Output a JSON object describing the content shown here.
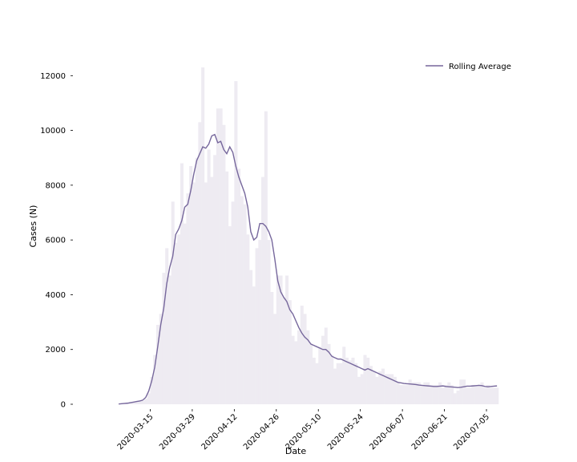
{
  "chart_data": {
    "type": "bar",
    "title": "",
    "xlabel": "Date",
    "ylabel": "Cases (N)",
    "start_date": "2020-03-01",
    "ylim": [
      0,
      12800
    ],
    "y_ticks": [
      0,
      2000,
      4000,
      6000,
      8000,
      10000,
      12000
    ],
    "y_tick_labels": [
      "0",
      "2000",
      "4000",
      "6000",
      "8000",
      "10000",
      "12000"
    ],
    "x_tick_labels": [
      "2020-03-15",
      "2020-03-29",
      "2020-04-12",
      "2020-04-26",
      "2020-05-10",
      "2020-05-24",
      "2020-06-07",
      "2020-06-21",
      "2020-07-05"
    ],
    "legend": {
      "position": "top-right",
      "entries": [
        {
          "label": "Rolling Average",
          "color": "#76679c"
        }
      ]
    },
    "colors": {
      "bars": "#eeebf2",
      "line": "#76679c"
    },
    "series": [
      {
        "type": "bar",
        "name": "",
        "values": [
          0,
          0,
          0,
          10,
          20,
          30,
          60,
          80,
          90,
          100,
          110,
          120,
          200,
          400,
          1000,
          1800,
          2900,
          3300,
          4800,
          5700,
          4700,
          7400,
          5900,
          6200,
          8800,
          6600,
          7700,
          8700,
          8100,
          9000,
          10300,
          12300,
          8100,
          9300,
          8300,
          9100,
          10800,
          10800,
          10200,
          8500,
          6500,
          7400,
          11800,
          8600,
          7600,
          7300,
          6200,
          4900,
          4300,
          5700,
          6000,
          8300,
          10700,
          6000,
          4100,
          3300,
          4700,
          4700,
          3900,
          4700,
          3800,
          2500,
          2300,
          2700,
          3600,
          3300,
          2700,
          2200,
          1700,
          1500,
          2100,
          2500,
          2800,
          2200,
          1800,
          1300,
          1500,
          1500,
          2100,
          1700,
          1600,
          1700,
          1500,
          1000,
          1100,
          1800,
          1700,
          1400,
          1200,
          1000,
          1200,
          1300,
          1100,
          1100,
          1100,
          1000,
          800,
          700,
          700,
          700,
          900,
          800,
          800,
          800,
          700,
          800,
          800,
          700,
          700,
          700,
          800,
          600,
          700,
          800,
          700,
          400,
          500,
          900,
          900,
          600,
          600,
          700,
          700,
          700,
          800,
          600,
          700,
          600,
          600,
          600
        ]
      },
      {
        "type": "line",
        "name": "Rolling Average",
        "values": [
          null,
          null,
          null,
          10,
          20,
          30,
          40,
          60,
          80,
          100,
          120,
          150,
          250,
          480,
          850,
          1350,
          2100,
          2900,
          3500,
          4400,
          5000,
          5400,
          6200,
          6400,
          6700,
          7200,
          7300,
          7800,
          8400,
          8900,
          9150,
          9400,
          9350,
          9500,
          9800,
          9850,
          9550,
          9600,
          9300,
          9150,
          9400,
          9200,
          8700,
          8300,
          8000,
          7700,
          7200,
          6300,
          6000,
          6100,
          6600,
          6600,
          6500,
          6300,
          6000,
          5300,
          4500,
          4100,
          3900,
          3750,
          3450,
          3300,
          3050,
          2800,
          2600,
          2450,
          2350,
          2200,
          2150,
          2100,
          2050,
          2000,
          2000,
          1900,
          1750,
          1700,
          1650,
          1650,
          1600,
          1550,
          1500,
          1450,
          1400,
          1350,
          1300,
          1250,
          1300,
          1250,
          1200,
          1150,
          1100,
          1050,
          1000,
          950,
          900,
          850,
          800,
          780,
          760,
          750,
          740,
          730,
          720,
          700,
          690,
          680,
          670,
          660,
          650,
          650,
          660,
          670,
          650,
          640,
          630,
          620,
          610,
          620,
          640,
          660,
          660,
          670,
          680,
          690,
          680,
          650,
          640,
          650,
          660,
          670
        ]
      }
    ]
  }
}
